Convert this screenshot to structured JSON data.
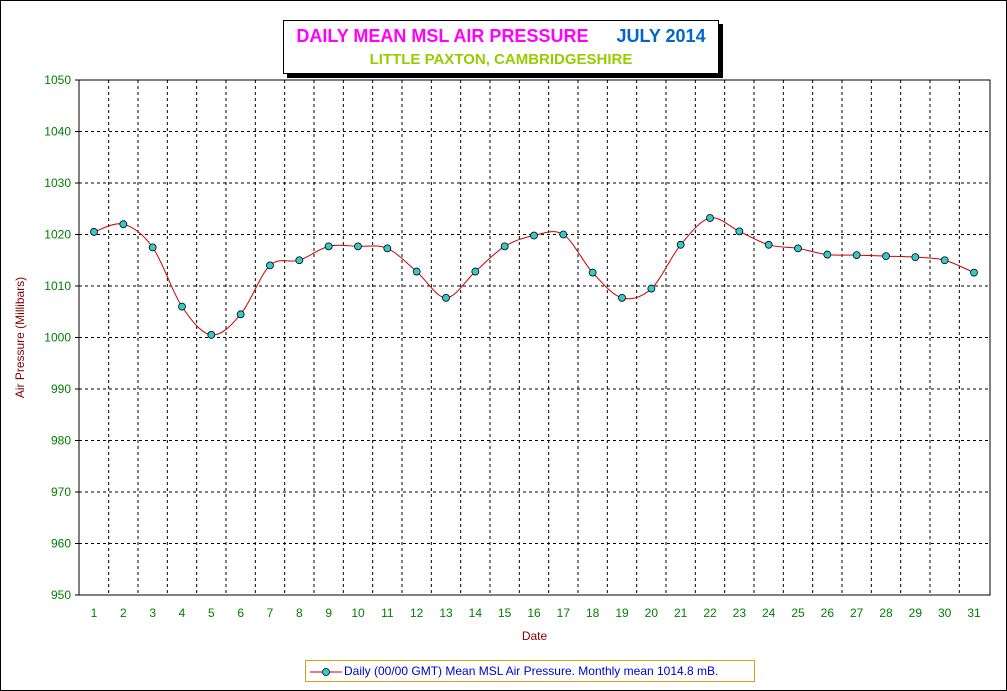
{
  "colors": {
    "title_main": "#ff00ff",
    "title_month": "#0066cc",
    "subtitle": "#99cc00",
    "axis_text": "#008000",
    "axis_title": "#800000",
    "series_line": "#cc0000",
    "marker_fill": "#33cccc",
    "legend_text": "#0000cc",
    "grid": "#000000"
  },
  "header": {
    "title": "DAILY MEAN MSL AIR PRESSURE",
    "month": "JULY 2014",
    "subtitle": "LITTLE PAXTON, CAMBRIDGESHIRE"
  },
  "legend": {
    "label": "Daily (00/00 GMT) Mean MSL Air Pressure. Monthly mean 1014.8 mB."
  },
  "chart_data": {
    "type": "line",
    "title": "DAILY MEAN MSL AIR PRESSURE    JULY 2014",
    "subtitle": "LITTLE PAXTON, CAMBRIDGESHIRE",
    "xlabel": "Date",
    "ylabel": "Air Pressure (Millibars)",
    "ylim": [
      950,
      1050
    ],
    "yticks": [
      950,
      960,
      970,
      980,
      990,
      1000,
      1010,
      1020,
      1030,
      1040,
      1050
    ],
    "x": [
      1,
      2,
      3,
      4,
      5,
      6,
      7,
      8,
      9,
      10,
      11,
      12,
      13,
      14,
      15,
      16,
      17,
      18,
      19,
      20,
      21,
      22,
      23,
      24,
      25,
      26,
      27,
      28,
      29,
      30,
      31
    ],
    "grid": true,
    "legend_position": "bottom",
    "series": [
      {
        "name": "Daily (00/00 GMT) Mean MSL Air Pressure. Monthly mean 1014.8 mB.",
        "values": [
          1020.5,
          1022,
          1017.5,
          1006,
          1000.5,
          1004.5,
          1014,
          1015,
          1017.7,
          1017.7,
          1017.3,
          1012.8,
          1007.7,
          1012.8,
          1017.7,
          1019.8,
          1020,
          1012.6,
          1007.7,
          1009.5,
          1018,
          1023.2,
          1020.6,
          1018,
          1017.3,
          1016.1,
          1016,
          1015.8,
          1015.6,
          1015,
          1012.6
        ]
      }
    ]
  }
}
